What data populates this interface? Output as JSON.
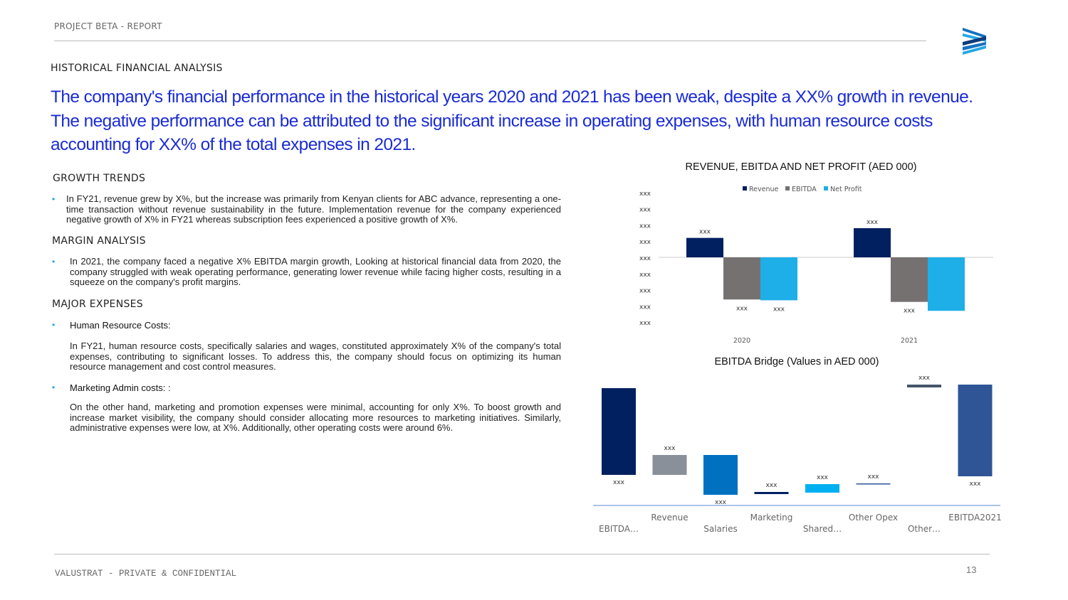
{
  "header": {
    "title": "PROJECT BETA - REPORT"
  },
  "section": "HISTORICAL FINANCIAL ANALYSIS",
  "headline": "The company's financial performance in the historical years 2020 and 2021 has been weak, despite a XX% growth in revenue. The negative performance can be attributed to the significant increase in operating expenses, with human resource costs accounting for XX% of the total expenses in 2021.",
  "growth": {
    "title": "GROWTH TRENDS",
    "text": "In FY21, revenue grew by X%, but the increase was primarily from Kenyan clients for ABC advance, representing a one-time transaction without revenue sustainability in the future. Implementation revenue for the company experienced negative growth of X% in FY21 whereas subscription fees experienced a positive growth of X%."
  },
  "margin": {
    "title": "MARGIN ANALYSIS",
    "text": "In 2021, the company faced a negative X% EBITDA margin growth, Looking at historical financial data from 2020, the company struggled with weak operating performance, generating lower revenue while facing higher costs, resulting in a squeeze on the company's profit margins."
  },
  "expenses": {
    "title": "MAJOR EXPENSES",
    "hr_title": "Human Resource Costs:",
    "hr_text": "In FY21, human resource costs, specifically salaries and wages, constituted approximately X% of the company's total expenses, contributing to significant losses. To address this, the company should focus on optimizing its human resource management and cost control measures.",
    "mk_title": "Marketing Admin costs",
    "mk_suffix": ": :",
    "mk_text": "On the other hand, marketing and promotion expenses were minimal, accounting for only X%. To boost growth and increase market visibility, the company should consider allocating more resources to marketing initiatives. Similarly, administrative expenses were low, at X%. Additionally, other operating costs were around 6%."
  },
  "footer": {
    "text": "VALUSTRAT - PRIVATE & CONFIDENTIAL",
    "page": "13"
  },
  "colors": {
    "accent": "#1a2bd6",
    "navy": "#002060",
    "gray": "#767171",
    "sky": "#1eaee8"
  },
  "chart_data": [
    {
      "type": "bar",
      "title": "REVENUE, EBITDA AND NET PROFIT (AED 000)",
      "categories": [
        "2020",
        "2021"
      ],
      "yticks": [
        "xxx",
        "xxx",
        "xxx",
        "xxx",
        "xxx",
        "xxx",
        "xxx",
        "xxx",
        "xxx"
      ],
      "ylim": [
        -4,
        4
      ],
      "legend_position": "top",
      "series": [
        {
          "name": "Revenue",
          "color": "#002060",
          "values": [
            1.2,
            1.8
          ],
          "labels": [
            "xxx",
            "xxx"
          ]
        },
        {
          "name": "EBITDA",
          "color": "#767171",
          "values": [
            -2.6,
            -2.75
          ],
          "labels": [
            "xxx",
            "xxx"
          ]
        },
        {
          "name": "Net Profit",
          "color": "#1eaee8",
          "values": [
            -2.65,
            -3.3
          ],
          "labels": [
            "xxx",
            ""
          ]
        }
      ]
    },
    {
      "type": "waterfall",
      "title": "EBITDA Bridge (Values in AED 000)",
      "ylim": [
        0,
        17.5
      ],
      "categories": [
        "EBITDA…",
        "Revenue",
        "Salaries",
        "Marketing",
        "Shared…",
        "Other Opex",
        "Other…",
        "EBITDA2021"
      ],
      "ranges": [
        [
          4.3,
          16.5
        ],
        [
          4.3,
          7.1
        ],
        [
          1.5,
          7.1
        ],
        [
          1.6,
          1.9
        ],
        [
          1.8,
          3.0
        ],
        [
          3.0,
          3.1
        ],
        [
          16.6,
          17.0
        ],
        [
          4.1,
          17.0
        ]
      ],
      "label_pos": [
        "below",
        "above",
        "below",
        "above",
        "above",
        "above",
        "above",
        "below"
      ],
      "labels": [
        "xxx",
        "xxx",
        "xxx",
        "xxx",
        "xxx",
        "xxx",
        "xxx",
        "xxx"
      ],
      "colors": [
        "#002060",
        "#8a9099",
        "#0070c0",
        "#002060",
        "#00b0f0",
        "#2f5597",
        "#44546a",
        "#2f5597"
      ]
    }
  ]
}
